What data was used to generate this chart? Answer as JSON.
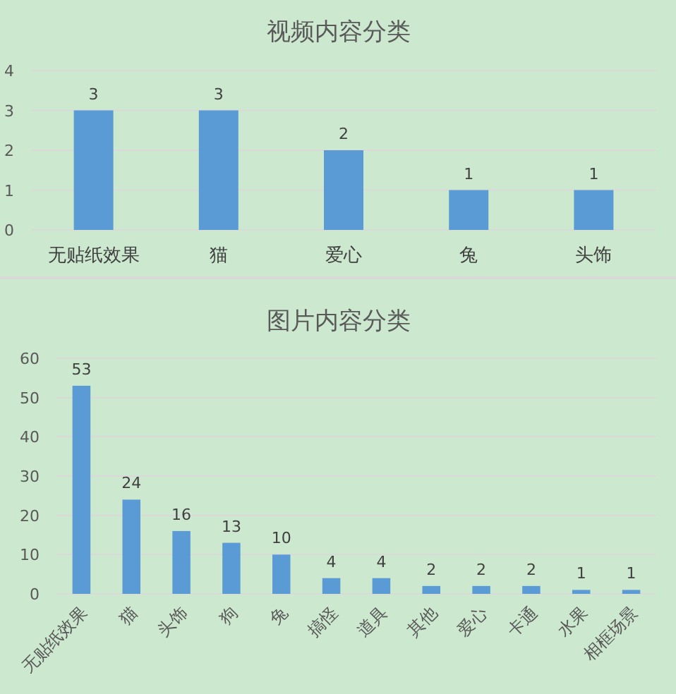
{
  "chart_data": [
    {
      "type": "bar",
      "title": "视频内容分类",
      "categories": [
        "无贴纸效果",
        "猫",
        "爱心",
        "兔",
        "头饰"
      ],
      "values": [
        3,
        3,
        2,
        1,
        1
      ],
      "color": "#5b9bd5",
      "ylim": [
        0,
        4
      ],
      "yticks": [
        0,
        1,
        2,
        3,
        4
      ],
      "grid": "y",
      "data_labels": true
    },
    {
      "type": "bar",
      "title": "图片内容分类",
      "categories": [
        "无贴纸效果",
        "猫",
        "头饰",
        "狗",
        "兔",
        "搞怪",
        "道具",
        "其他",
        "爱心",
        "卡通",
        "水果",
        "相框场景"
      ],
      "values": [
        53,
        24,
        16,
        13,
        10,
        4,
        4,
        2,
        2,
        2,
        1,
        1
      ],
      "color": "#5b9bd5",
      "ylim": [
        0,
        60
      ],
      "yticks": [
        0,
        10,
        20,
        30,
        40,
        50,
        60
      ],
      "grid": "y",
      "data_labels": true
    }
  ]
}
